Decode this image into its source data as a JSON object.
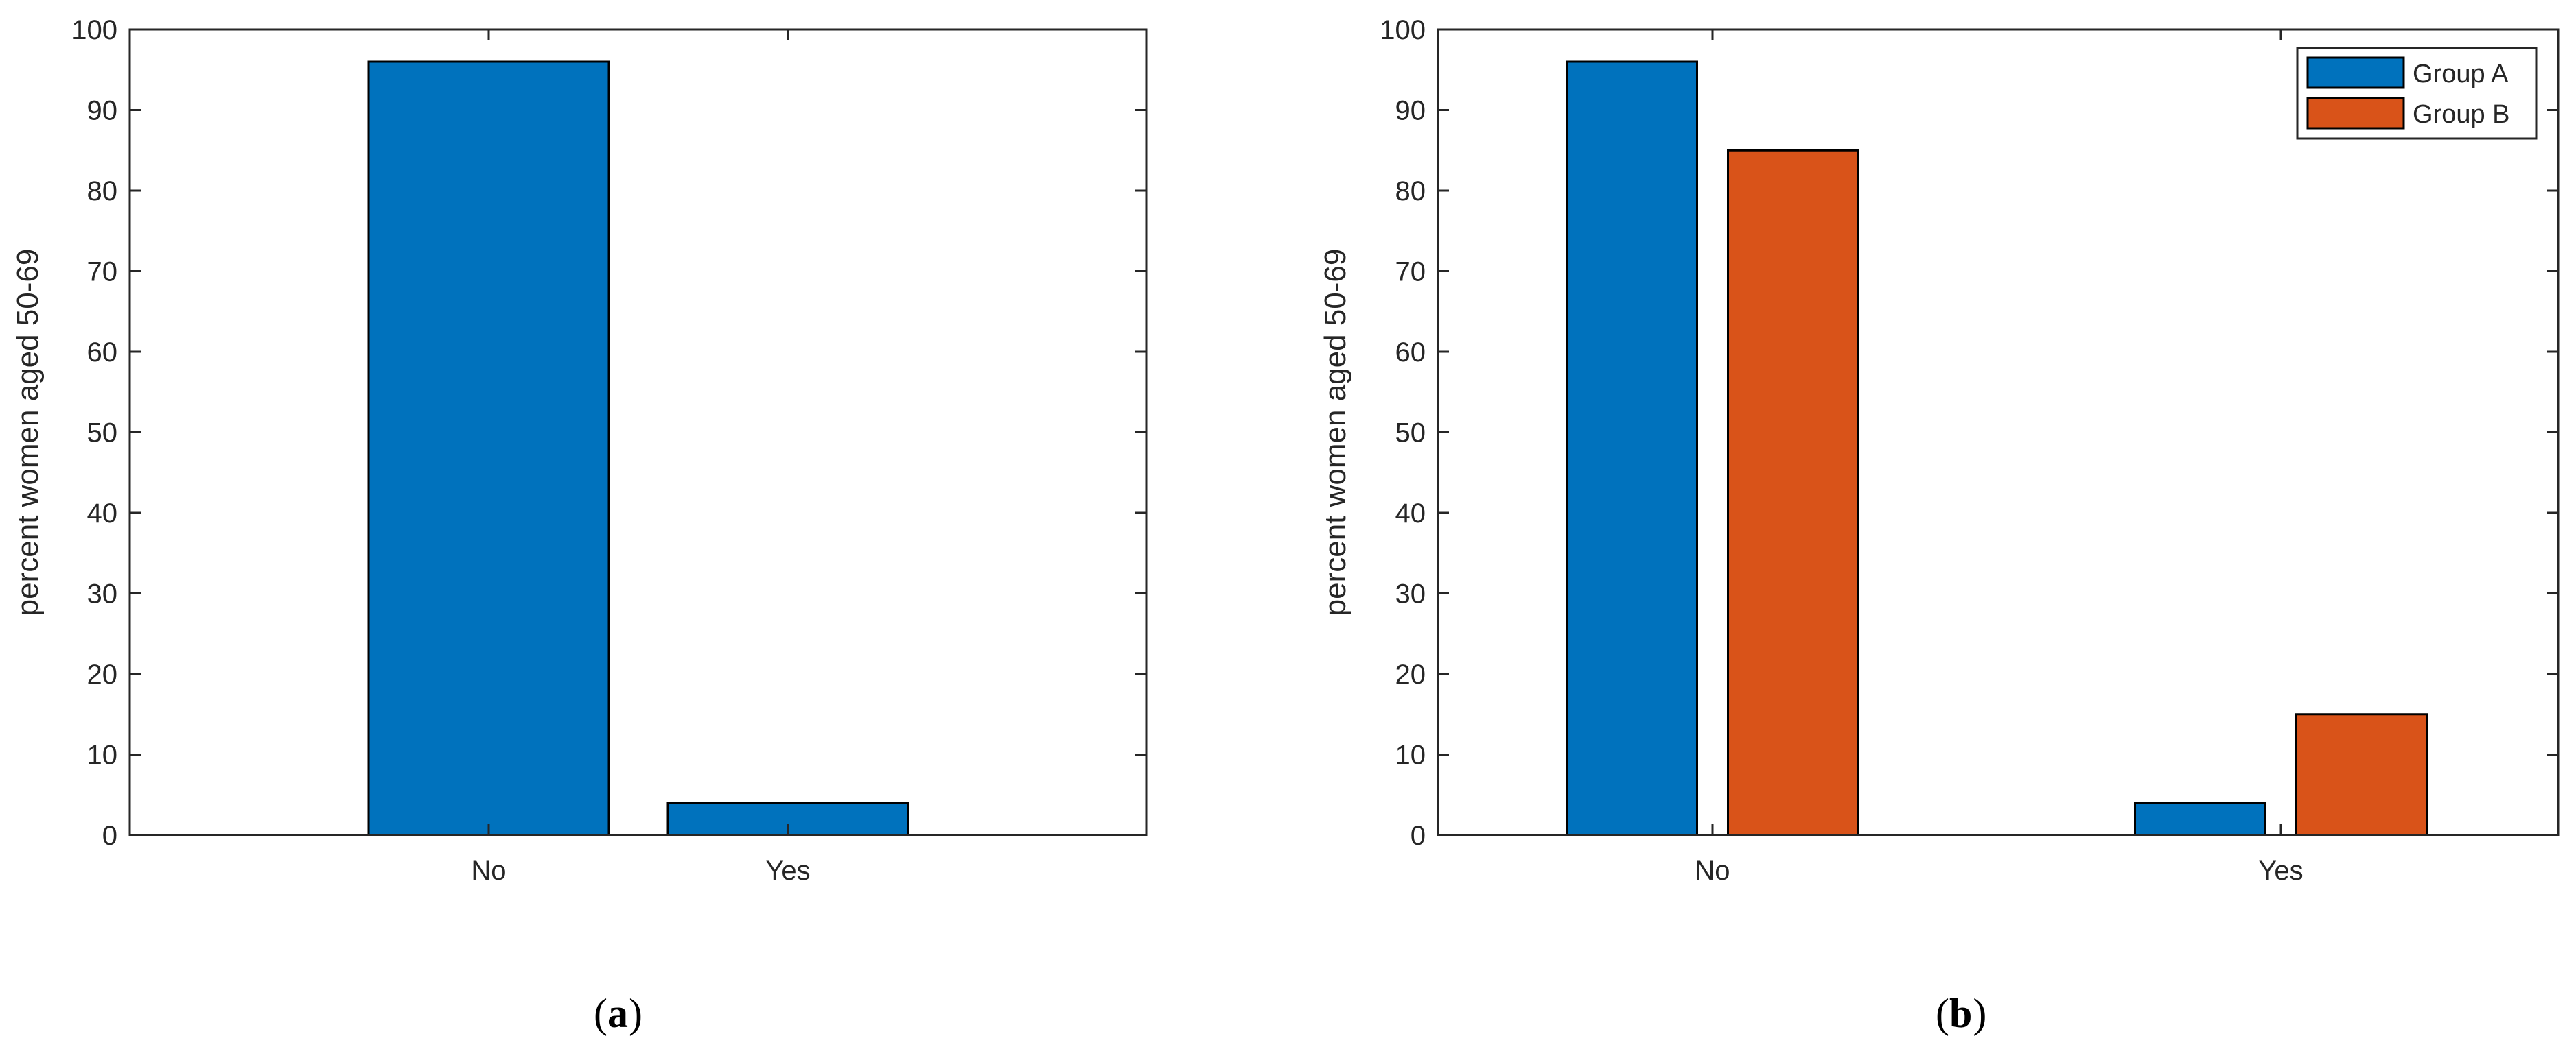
{
  "chart_data": [
    {
      "type": "bar",
      "panel_label": "a",
      "categories": [
        "No",
        "Yes"
      ],
      "series": [
        {
          "values": [
            96,
            4
          ],
          "color": "#0072BD"
        }
      ],
      "xlabel": "",
      "ylabel": "percent women aged 50-69",
      "ylim": [
        0,
        100
      ],
      "yticks": [
        "0",
        "10",
        "20",
        "30",
        "40",
        "50",
        "60",
        "70",
        "80",
        "90",
        "100"
      ],
      "grid": false,
      "legend": null
    },
    {
      "type": "bar",
      "panel_label": "b",
      "categories": [
        "No",
        "Yes"
      ],
      "series": [
        {
          "name": "Group A",
          "values": [
            96,
            4
          ],
          "color": "#0072BD"
        },
        {
          "name": "Group B",
          "values": [
            85,
            15
          ],
          "color": "#D95319"
        }
      ],
      "xlabel": "",
      "ylabel": "percent women aged 50-69",
      "ylim": [
        0,
        100
      ],
      "yticks": [
        "0",
        "10",
        "20",
        "30",
        "40",
        "50",
        "60",
        "70",
        "80",
        "90",
        "100"
      ],
      "grid": false,
      "legend": "top-right"
    }
  ]
}
